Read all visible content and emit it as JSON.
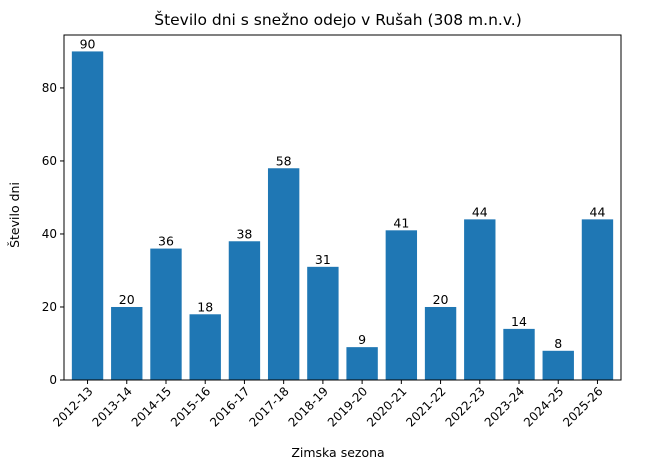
{
  "chart_data": {
    "type": "bar",
    "title": "Število dni s snežno odejo v Rušah (308 m.n.v.)",
    "xlabel": "Zimska sezona",
    "ylabel": "Število dni",
    "categories": [
      "2012-13",
      "2013-14",
      "2014-15",
      "2015-16",
      "2016-17",
      "2017-18",
      "2018-19",
      "2019-20",
      "2020-21",
      "2021-22",
      "2022-23",
      "2023-24",
      "2024-25",
      "2025-26"
    ],
    "values": [
      90,
      20,
      36,
      18,
      38,
      58,
      31,
      9,
      41,
      20,
      44,
      14,
      8,
      44
    ],
    "data_labels": [
      "90",
      "20",
      "36",
      "18",
      "38",
      "58",
      "31",
      "9",
      "41",
      "20",
      "44",
      "14",
      "8",
      "44"
    ],
    "ylim": [
      0,
      94.5
    ],
    "yticks": [
      0,
      20,
      40,
      60,
      80
    ],
    "grid": false,
    "bar_color": "#1f77b4"
  }
}
